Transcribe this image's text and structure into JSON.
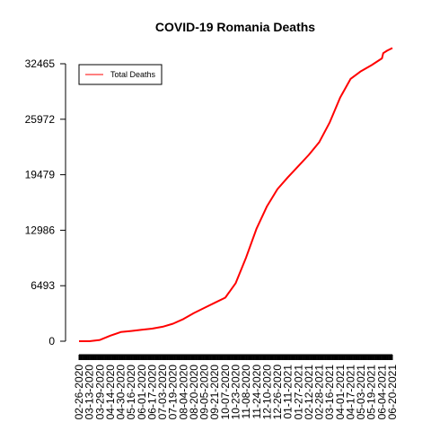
{
  "chart_data": {
    "type": "line",
    "title": "COVID-19 Romania Deaths",
    "xlabel": "",
    "ylabel": "",
    "ylim": [
      0,
      32465
    ],
    "yticks": [
      0,
      6493,
      12986,
      19479,
      25972,
      32465
    ],
    "xlim": [
      "2020-02-26",
      "2021-06-20"
    ],
    "x_tick_labels": [
      "02-26-2020",
      "03-13-2020",
      "03-29-2020",
      "04-14-2020",
      "04-30-2020",
      "05-16-2020",
      "06-01-2020",
      "06-17-2020",
      "07-03-2020",
      "07-19-2020",
      "08-04-2020",
      "08-20-2020",
      "09-05-2020",
      "09-21-2020",
      "10-07-2020",
      "10-23-2020",
      "11-08-2020",
      "11-24-2020",
      "12-10-2020",
      "12-26-2020",
      "01-11-2021",
      "01-27-2021",
      "02-12-2021",
      "02-28-2021",
      "03-16-2021",
      "04-01-2021",
      "04-17-2021",
      "05-03-2021",
      "05-19-2021",
      "06-04-2021",
      "06-20-2021"
    ],
    "legend": {
      "position": "top-left",
      "entries": [
        {
          "name": "Total Deaths",
          "color": "#ff0000"
        }
      ]
    },
    "grid": false,
    "series": [
      {
        "name": "Total Deaths",
        "color": "#ff0000",
        "x": [
          "2020-02-26",
          "2020-03-13",
          "2020-03-29",
          "2020-04-14",
          "2020-04-30",
          "2020-05-16",
          "2020-06-01",
          "2020-06-17",
          "2020-07-03",
          "2020-07-19",
          "2020-08-04",
          "2020-08-20",
          "2020-09-05",
          "2020-09-21",
          "2020-10-07",
          "2020-10-23",
          "2020-11-08",
          "2020-11-24",
          "2020-12-10",
          "2020-12-26",
          "2021-01-11",
          "2021-01-27",
          "2021-02-12",
          "2021-02-28",
          "2021-03-16",
          "2021-04-01",
          "2021-04-17",
          "2021-05-03",
          "2021-05-19",
          "2021-06-04",
          "2021-06-06",
          "2021-06-12",
          "2021-06-20"
        ],
        "y": [
          0,
          5,
          150,
          650,
          1070,
          1200,
          1340,
          1470,
          1690,
          2050,
          2600,
          3300,
          3900,
          4500,
          5100,
          6800,
          9800,
          13200,
          15800,
          17800,
          19200,
          20500,
          21800,
          23300,
          25600,
          28500,
          30700,
          31600,
          32300,
          33100,
          33700,
          34000,
          34300
        ]
      }
    ]
  }
}
